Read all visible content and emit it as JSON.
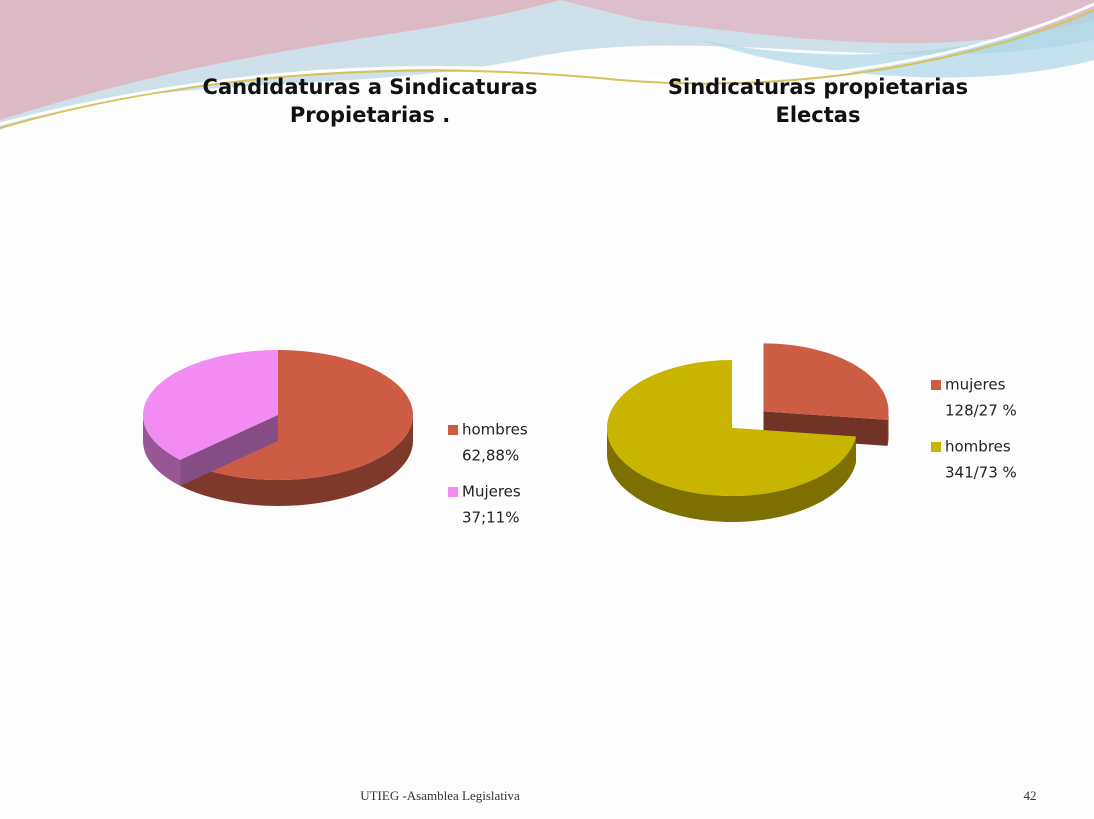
{
  "chart_data": [
    {
      "type": "pie",
      "title": [
        "Candidaturas a Sindicaturas",
        "Propietarias ."
      ],
      "categories": [
        "hombres",
        "Mujeres"
      ],
      "values": [
        62.88,
        37.11
      ],
      "value_labels": [
        "62,88%",
        "37;11%"
      ],
      "colors": [
        "#cd5c45",
        "#f38cf2"
      ],
      "explode": [
        false,
        false
      ]
    },
    {
      "type": "pie",
      "title": [
        "Sindicaturas propietarias",
        "Electas"
      ],
      "categories": [
        "mujeres",
        "hombres"
      ],
      "values": [
        27,
        73
      ],
      "value_labels": [
        "128/27 %",
        "341/73 %"
      ],
      "colors": [
        "#cd5c45",
        "#c9b400"
      ],
      "explode": [
        true,
        false
      ]
    }
  ],
  "footer": {
    "text": "UTIEG -Asamblea Legislativa",
    "page": 42
  }
}
